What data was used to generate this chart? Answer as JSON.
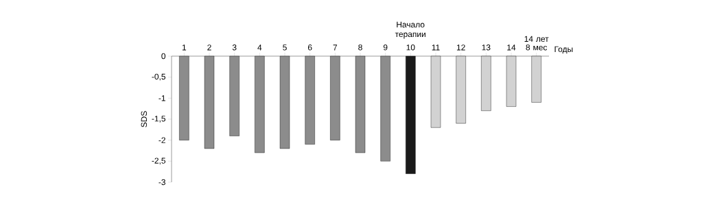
{
  "chart_data": {
    "type": "bar",
    "categories": [
      "1",
      "2",
      "3",
      "4",
      "5",
      "6",
      "7",
      "8",
      "9",
      "10",
      "11",
      "12",
      "13",
      "14",
      "14 лет 8 мес"
    ],
    "values": [
      -2.0,
      -2.2,
      -1.9,
      -2.3,
      -2.2,
      -2.1,
      -2.0,
      -2.3,
      -2.5,
      -2.8,
      -1.7,
      -1.6,
      -1.3,
      -1.2,
      -1.1
    ],
    "colors": [
      "#8c8c8c",
      "#8c8c8c",
      "#8c8c8c",
      "#8c8c8c",
      "#8c8c8c",
      "#8c8c8c",
      "#8c8c8c",
      "#8c8c8c",
      "#8c8c8c",
      "#1a1a1a",
      "#d2d2d2",
      "#d2d2d2",
      "#d2d2d2",
      "#d2d2d2",
      "#d2d2d2"
    ],
    "ylim": [
      -3,
      0
    ],
    "yticks": [
      0,
      {
        "value": -0.5,
        "label": "-0,5"
      },
      -1,
      {
        "value": -1.5,
        "label": "-1,5"
      },
      -2,
      {
        "value": -2.5,
        "label": "-2,5"
      },
      -3
    ],
    "xlabel": "Годы",
    "ylabel": "SDS",
    "annotations": [
      "Начало терапии"
    ]
  }
}
